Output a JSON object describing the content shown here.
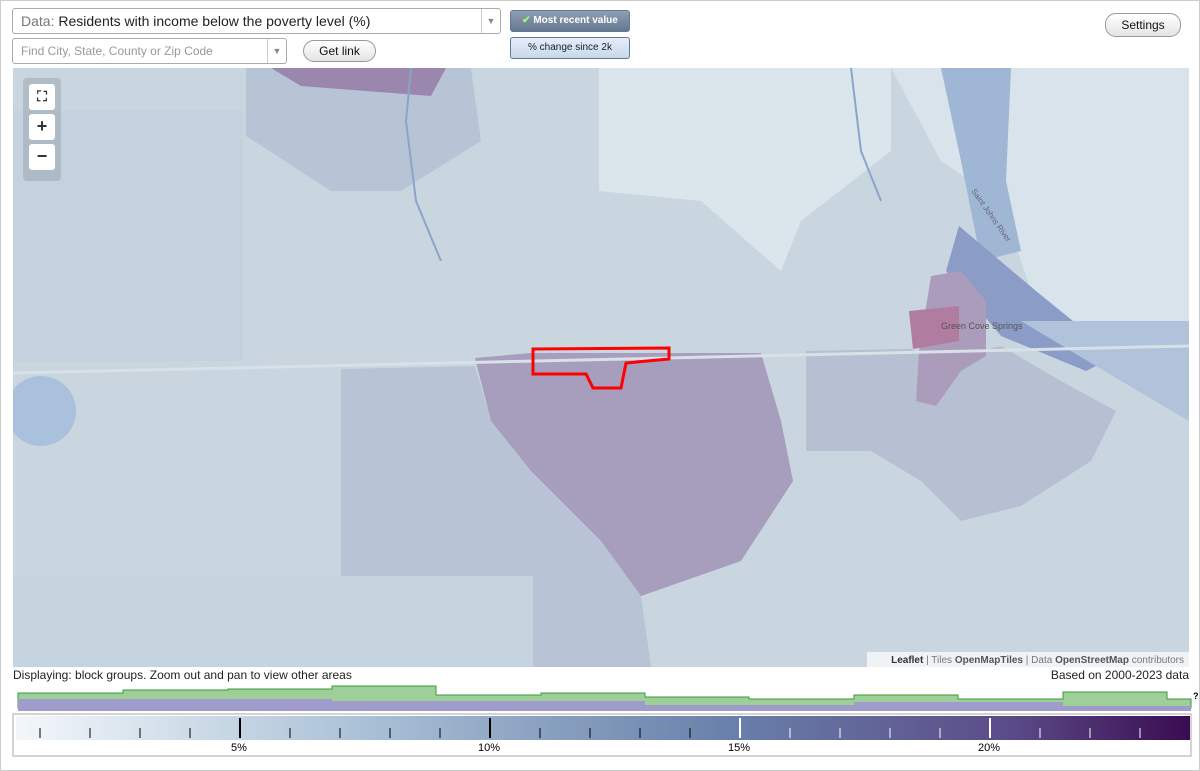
{
  "controls": {
    "data_label": "Data:",
    "data_value": "Residents with income below the poverty level (%)",
    "search_placeholder": "Find City, State, County or Zip Code",
    "get_link": "Get link",
    "most_recent": "Most recent value",
    "percent_change": "% change since 2k",
    "settings": "Settings"
  },
  "map": {
    "place_label": "Green Cove Springs",
    "river_label": "Saint Johns River",
    "attribution": [
      "Leaflet",
      " | Tiles ",
      "OpenMapTiles",
      " | Data ",
      "OpenStreetMap",
      " contributors"
    ]
  },
  "footer": {
    "displaying": "Displaying: block groups. Zoom out and pan to view other areas",
    "based_on": "Based on 2000-2023 data",
    "help": "?"
  },
  "legend": {
    "labels": [
      "5%",
      "10%",
      "15%",
      "20%"
    ]
  }
}
